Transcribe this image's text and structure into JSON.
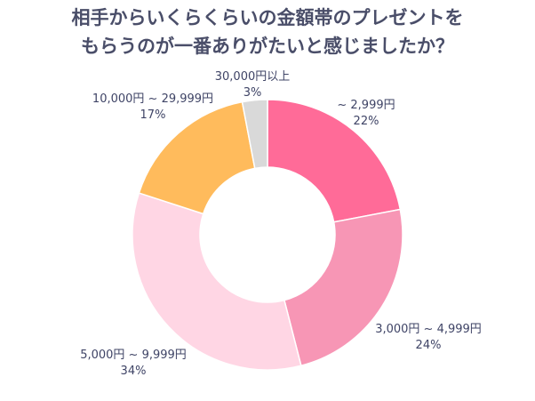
{
  "chart_data": {
    "type": "pie",
    "donut": true,
    "title_lines": [
      "相手からいくらくらいの金額帯のプレゼントを",
      "もらうのが一番ありがたいと感じましたか？"
    ],
    "categories": [
      "~ 2,999円",
      "3,000円 ~ 4,999円",
      "5,000円 ~ 9,999円",
      "10,000円 ~ 29,999円",
      "30,000円以上"
    ],
    "values": [
      22,
      24,
      34,
      17,
      3
    ],
    "value_labels": [
      "22%",
      "24%",
      "34%",
      "17%",
      "3%"
    ],
    "colors": [
      "#ff6b98",
      "#f796b5",
      "#ffd6e4",
      "#ffbb5c",
      "#d9d9d9"
    ],
    "legend": "none"
  }
}
